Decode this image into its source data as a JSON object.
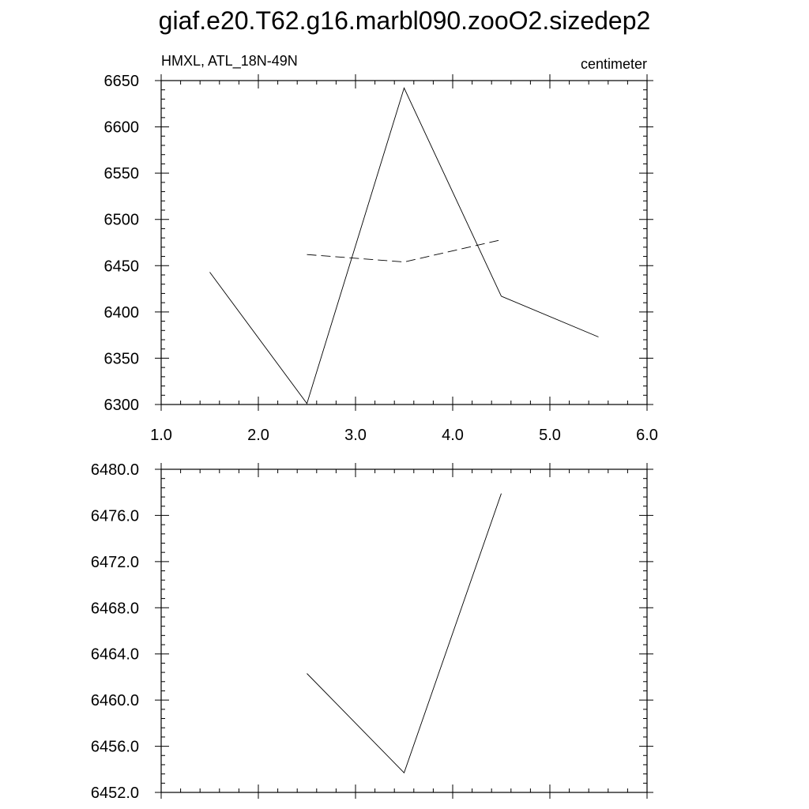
{
  "title": "giaf.e20.T62.g16.marbl090.zooO2.sizedep2",
  "chart_data": [
    {
      "type": "line",
      "subtitle_left": "HMXL, ATL_18N-49N",
      "subtitle_right": "centimeter",
      "xlim": [
        1.0,
        6.0
      ],
      "xticks": [
        "1.0",
        "2.0",
        "3.0",
        "4.0",
        "5.0",
        "6.0"
      ],
      "ylim": [
        6300,
        6650
      ],
      "yticks": [
        "6300",
        "6350",
        "6400",
        "6450",
        "6500",
        "6550",
        "6600",
        "6650"
      ],
      "grid": false,
      "series": [
        {
          "style": "solid",
          "color": "#000000",
          "x": [
            1.5,
            2.5,
            3.5,
            4.5,
            5.5
          ],
          "y": [
            6443,
            6301,
            6642,
            6417,
            6373
          ]
        },
        {
          "style": "dashed",
          "color": "#000000",
          "x": [
            2.5,
            3.5,
            4.5
          ],
          "y": [
            6462,
            6454,
            6478
          ]
        }
      ]
    },
    {
      "type": "line",
      "xlim": [
        1.0,
        6.0
      ],
      "xticks": [],
      "ylim": [
        6452.0,
        6480.0
      ],
      "yticks": [
        "6452.0",
        "6456.0",
        "6460.0",
        "6464.0",
        "6468.0",
        "6472.0",
        "6476.0",
        "6480.0"
      ],
      "grid": false,
      "series": [
        {
          "style": "solid",
          "color": "#000000",
          "x": [
            2.5,
            3.5,
            4.5
          ],
          "y": [
            6462.3,
            6453.7,
            6477.9
          ]
        }
      ]
    }
  ]
}
